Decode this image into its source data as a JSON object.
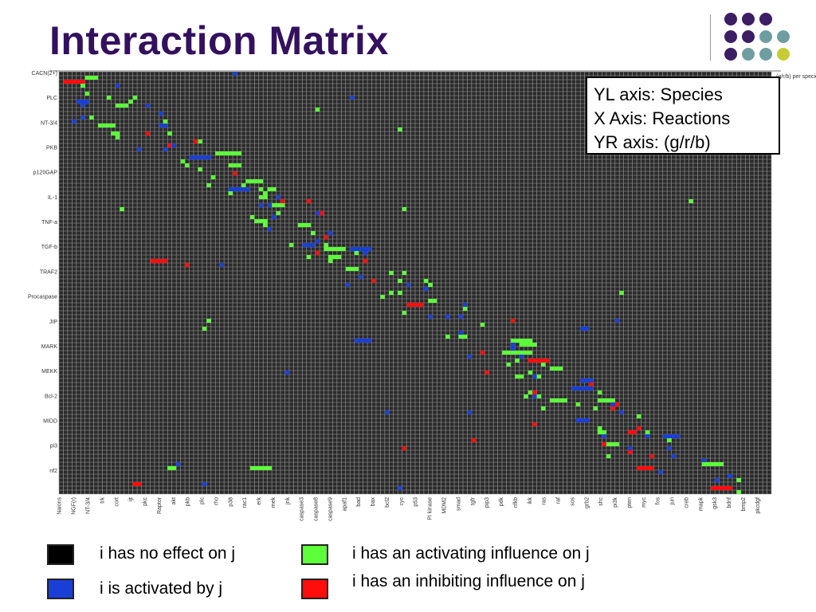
{
  "slide": {
    "title": "Interaction Matrix"
  },
  "annotation": {
    "line1": "YL axis: Species",
    "line2": "X Axis: Reactions",
    "line3": "YR axis: (g/r/b)"
  },
  "legend": {
    "items": [
      {
        "label": "i has no effect on j",
        "color": "#000000"
      },
      {
        "label": "i is activated by j",
        "color": "#1a3fd6"
      },
      {
        "label": "i has an activating influence on j",
        "color": "#5cff3a"
      },
      {
        "label": "i has an inhibiting influence on j",
        "color": "#ff0d0d"
      }
    ]
  },
  "colors": {
    "title": "#33115e",
    "cell": "#2a2a2a",
    "grid": "#9e9e9e",
    "activating": "#5cff3a",
    "activated_by": "#1a3fd6",
    "inhibiting": "#ff0d0d",
    "logo_purple": "#3b1e63",
    "logo_teal": "#6f9ea0",
    "logo_yellow": "#c6cc33"
  },
  "chart_data": {
    "type": "heatmap",
    "grid": "on",
    "y_labels_left_readable": [
      "CACN(2+)",
      "PLC",
      "NT-3/4",
      "PKB",
      "p120GAP",
      "IL-1",
      "TNF-a",
      "TGF-b",
      "TRAF2",
      "Procaspase",
      "JIP",
      "MARK",
      "MEKK",
      "Bcl-2",
      "MIDD",
      "pi3",
      "nf2"
    ],
    "x_labels": [
      "Naions",
      "NGF(r)",
      "NT-3/4",
      "trk",
      "cort",
      "ijt",
      "pkc",
      "Raptor",
      "akt",
      "pkb",
      "plc",
      "rho",
      "p38",
      "rac1",
      "erk",
      "mek",
      "jnk",
      "caspase3",
      "caspase8",
      "caspase9",
      "apaf1",
      "bad",
      "bax",
      "bcl2",
      "cyc",
      "p53",
      "PI kinase",
      "MDM2",
      "smad",
      "tgfr",
      "pip3",
      "pdk",
      "nfkb",
      "ikk",
      "ras",
      "raf",
      "sos",
      "grb2",
      "shc",
      "pi3k",
      "pten",
      "myc",
      "fos",
      "jun",
      "creb",
      "mapk",
      "gsk3",
      "bdnf",
      "bmp2",
      "pkcdgf"
    ],
    "y_labels_right": "(g/r/b) per species"
  }
}
